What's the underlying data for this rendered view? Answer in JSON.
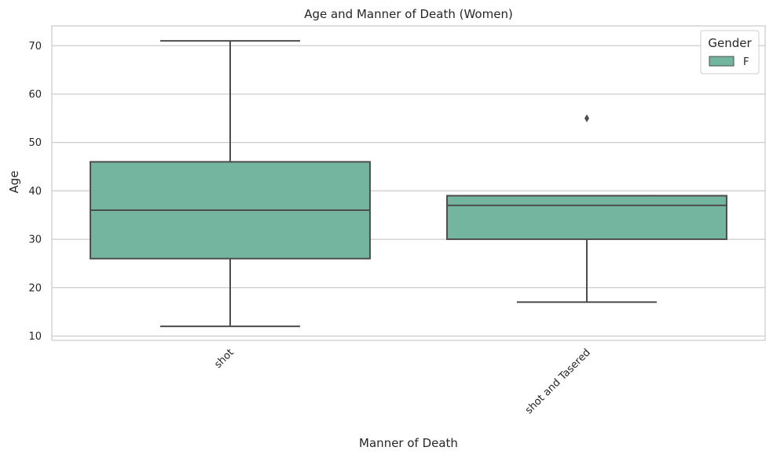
{
  "chart_data": {
    "type": "box",
    "title": "Age and Manner of Death (Women)",
    "xlabel": "Manner of Death",
    "ylabel": "Age",
    "categories": [
      "shot",
      "shot and Tasered"
    ],
    "ylim": [
      9.1,
      74.1
    ],
    "yticks": [
      10,
      20,
      30,
      40,
      50,
      60,
      70
    ],
    "grid": true,
    "legend": {
      "title": "Gender",
      "entries": [
        "F"
      ],
      "placement": "top-right"
    },
    "series": [
      {
        "name": "F",
        "color": "#74b5a0",
        "boxes": [
          {
            "category": "shot",
            "whisker_low": 12,
            "q1": 26,
            "median": 36,
            "q3": 46,
            "whisker_high": 71,
            "outliers": []
          },
          {
            "category": "shot and Tasered",
            "whisker_low": 17,
            "q1": 30,
            "median": 37,
            "q3": 39,
            "whisker_high": 39,
            "outliers": [
              55
            ]
          }
        ]
      }
    ],
    "colors": {
      "box_fill": "#74b5a0",
      "line": "#4d4d4d",
      "grid": "#cccccc",
      "frame": "#cccccc"
    }
  }
}
